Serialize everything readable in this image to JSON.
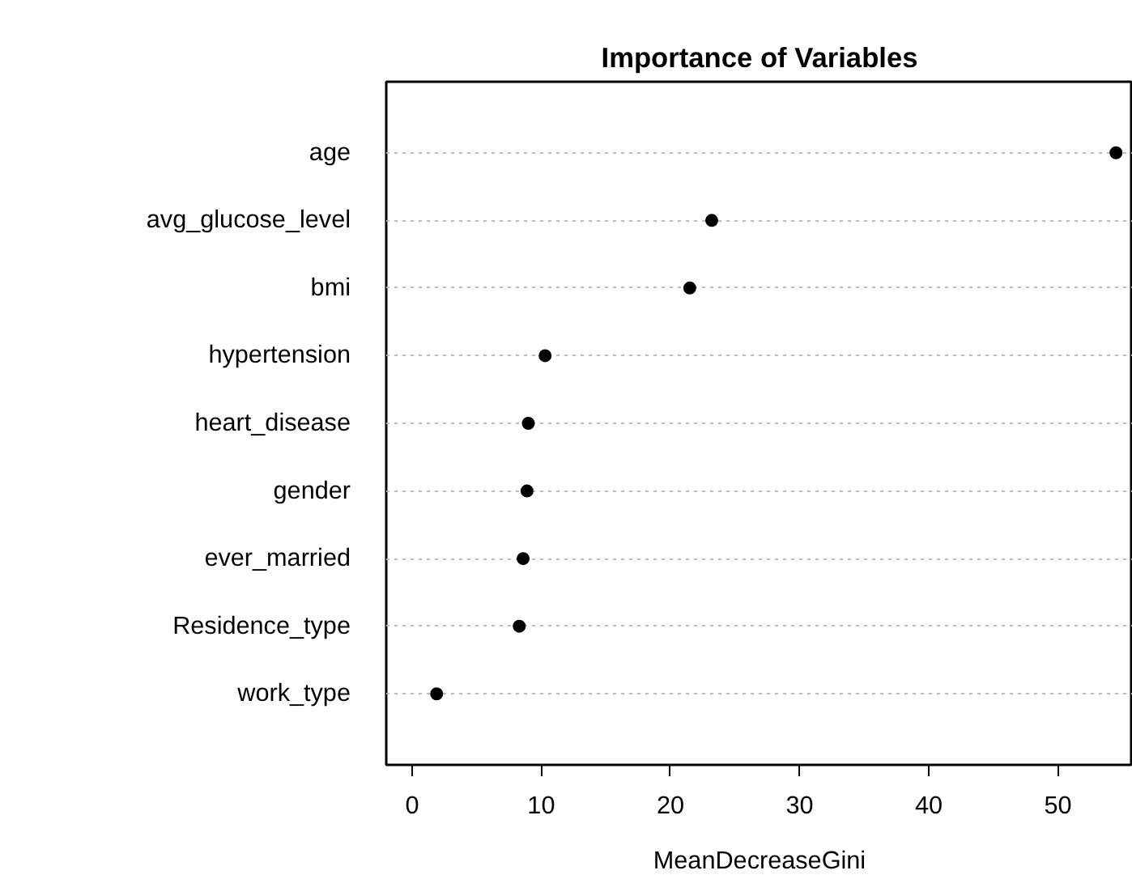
{
  "chart_data": {
    "type": "scatter",
    "title": "Importance of Variables",
    "xlabel": "MeanDecreaseGini",
    "orientation": "horizontal",
    "categories": [
      "age",
      "avg_glucose_level",
      "bmi",
      "hypertension",
      "heart_disease",
      "gender",
      "ever_married",
      "Residence_type",
      "work_type"
    ],
    "series": [
      {
        "color": "#000000",
        "values": [
          54.5,
          23.2,
          21.5,
          10.3,
          9.0,
          8.9,
          8.6,
          8.3,
          1.9
        ]
      }
    ],
    "xlim": [
      -2,
      55.8
    ],
    "xticks": [
      0,
      10,
      20,
      30,
      40,
      50
    ],
    "grid": "y",
    "marker": "circle"
  }
}
